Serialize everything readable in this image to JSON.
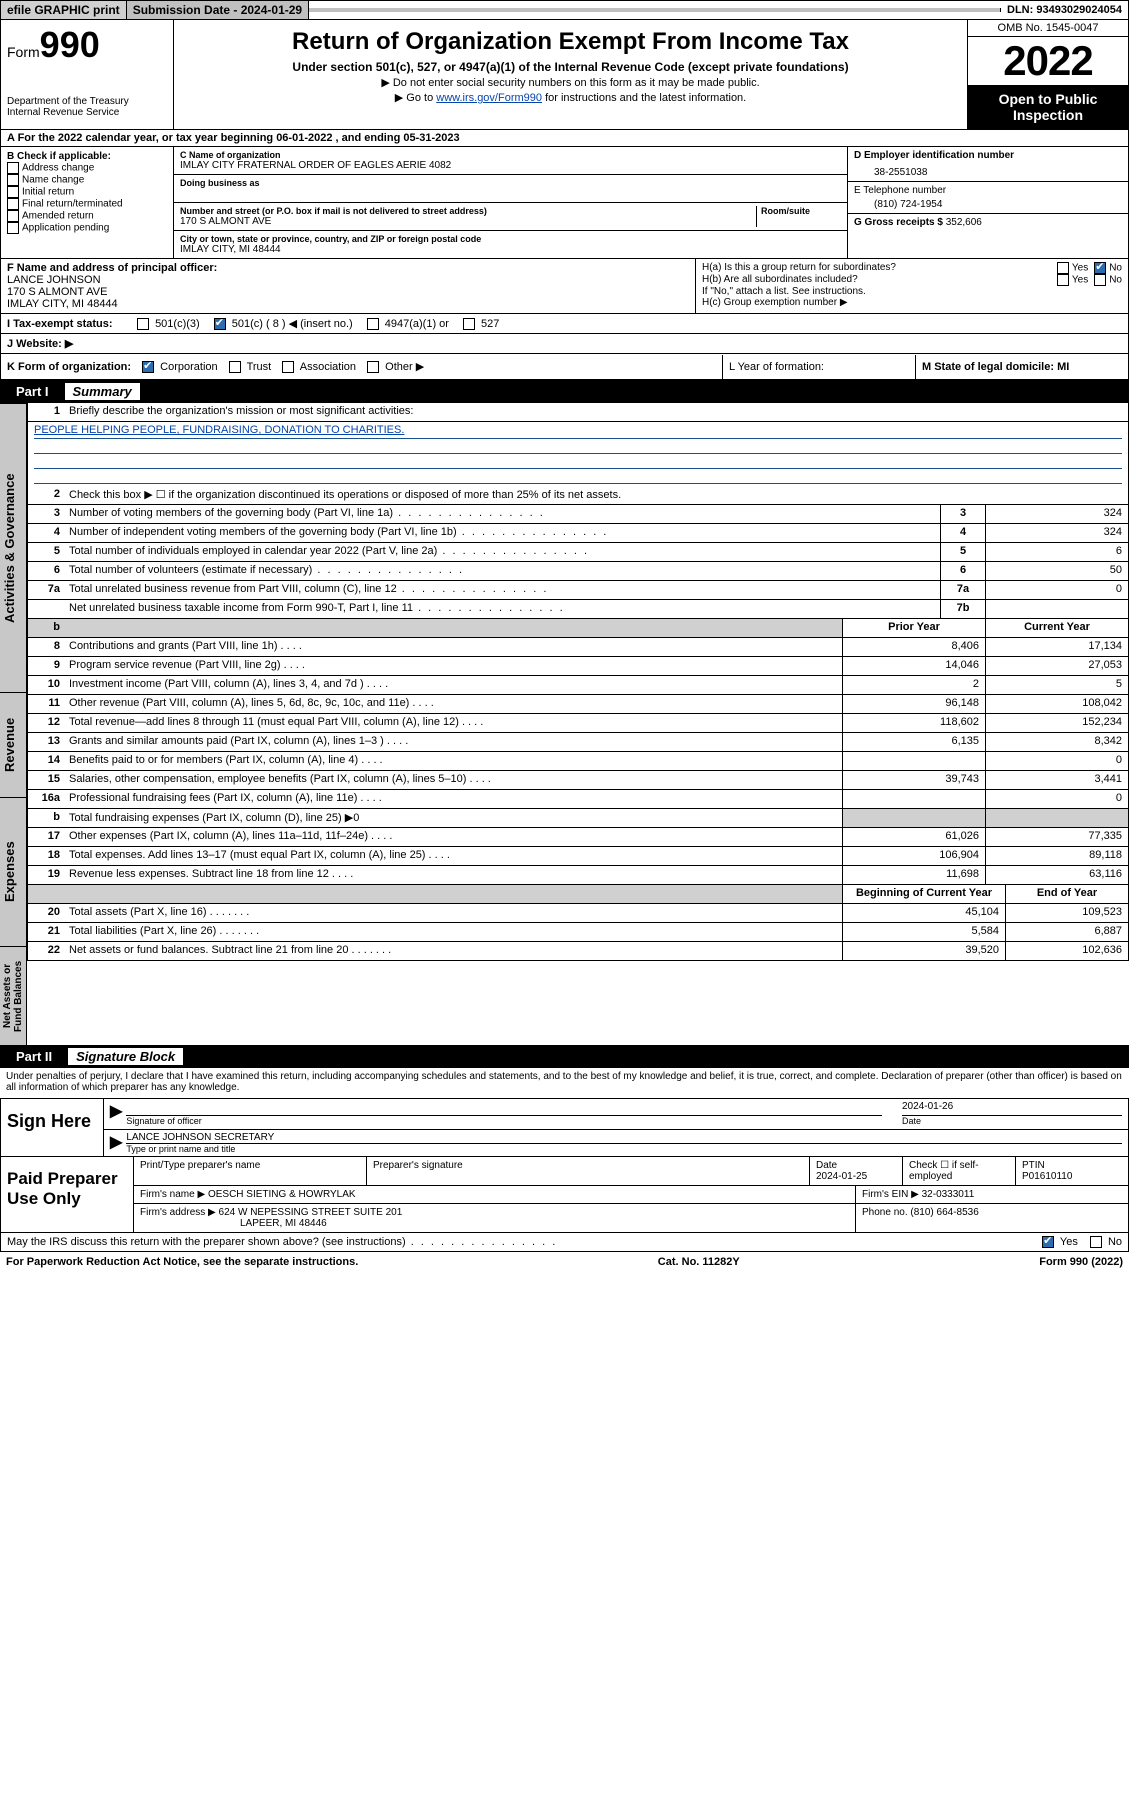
{
  "topbar": {
    "efile": "efile GRAPHIC print",
    "subdate_label": "Submission Date - 2024-01-29",
    "dln": "DLN: 93493029024054"
  },
  "header": {
    "form_prefix": "Form",
    "form_num": "990",
    "dept": "Department of the Treasury",
    "irs": "Internal Revenue Service",
    "title": "Return of Organization Exempt From Income Tax",
    "sub": "Under section 501(c), 527, or 4947(a)(1) of the Internal Revenue Code (except private foundations)",
    "note1": "▶ Do not enter social security numbers on this form as it may be made public.",
    "note2_pre": "▶ Go to ",
    "note2_link": "www.irs.gov/Form990",
    "note2_post": " for instructions and the latest information.",
    "omb": "OMB No. 1545-0047",
    "year": "2022",
    "open": "Open to Public Inspection"
  },
  "period": {
    "line": "A For the 2022 calendar year, or tax year beginning 06-01-2022   , and ending 05-31-2023"
  },
  "blockB": {
    "label": "B Check if applicable:",
    "opts": [
      "Address change",
      "Name change",
      "Initial return",
      "Final return/terminated",
      "Amended return",
      "Application pending"
    ]
  },
  "blockC": {
    "name_label": "C Name of organization",
    "name": "IMLAY CITY FRATERNAL ORDER OF EAGLES AERIE 4082",
    "dba_label": "Doing business as",
    "addr_label": "Number and street (or P.O. box if mail is not delivered to street address)",
    "room": "Room/suite",
    "addr": "170 S ALMONT AVE",
    "city_label": "City or town, state or province, country, and ZIP or foreign postal code",
    "city": "IMLAY CITY, MI  48444"
  },
  "blockD": {
    "label": "D Employer identification number",
    "ein": "38-2551038"
  },
  "blockE": {
    "label": "E Telephone number",
    "phone": "(810) 724-1954"
  },
  "blockG": {
    "label": "G Gross receipts $",
    "val": "352,606"
  },
  "blockF": {
    "label": "F  Name and address of principal officer:",
    "name": "LANCE JOHNSON",
    "addr1": "170 S ALMONT AVE",
    "addr2": "IMLAY CITY, MI  48444"
  },
  "blockH": {
    "ha": "H(a)  Is this a group return for subordinates?",
    "hb": "H(b)  Are all subordinates included?",
    "hnote": "If \"No,\" attach a list. See instructions.",
    "hc": "H(c)  Group exemption number ▶",
    "yes": "Yes",
    "no": "No"
  },
  "lineI": {
    "label": "I     Tax-exempt status:",
    "o1": "501(c)(3)",
    "o2": "501(c) ( 8 ) ◀ (insert no.)",
    "o3": "4947(a)(1) or",
    "o4": "527"
  },
  "lineJ": {
    "label": "J     Website: ▶"
  },
  "lineK": {
    "label": "K Form of organization:",
    "o1": "Corporation",
    "o2": "Trust",
    "o3": "Association",
    "o4": "Other ▶"
  },
  "lineL": {
    "label": "L Year of formation:"
  },
  "lineM": {
    "label": "M State of legal domicile: MI"
  },
  "part1": {
    "num": "Part I",
    "title": "Summary"
  },
  "summary": {
    "q1": "Briefly describe the organization's mission or most significant activities:",
    "mission": "PEOPLE HELPING PEOPLE, FUNDRAISING, DONATION TO CHARITIES.",
    "q2": "Check this box ▶ ☐  if the organization discontinued its operations or disposed of more than 25% of its net assets.",
    "rows_single": [
      {
        "n": "3",
        "d": "Number of voting members of the governing body (Part VI, line 1a)",
        "c": "3",
        "v": "324"
      },
      {
        "n": "4",
        "d": "Number of independent voting members of the governing body (Part VI, line 1b)",
        "c": "4",
        "v": "324"
      },
      {
        "n": "5",
        "d": "Total number of individuals employed in calendar year 2022 (Part V, line 2a)",
        "c": "5",
        "v": "6"
      },
      {
        "n": "6",
        "d": "Total number of volunteers (estimate if necessary)",
        "c": "6",
        "v": "50"
      },
      {
        "n": "7a",
        "d": "Total unrelated business revenue from Part VIII, column (C), line 12",
        "c": "7a",
        "v": "0"
      },
      {
        "n": "",
        "d": "Net unrelated business taxable income from Form 990-T, Part I, line 11",
        "c": "7b",
        "v": ""
      }
    ],
    "head_prior": "Prior Year",
    "head_curr": "Current Year",
    "rows_double": [
      {
        "n": "8",
        "d": "Contributions and grants (Part VIII, line 1h)",
        "p": "8,406",
        "c": "17,134"
      },
      {
        "n": "9",
        "d": "Program service revenue (Part VIII, line 2g)",
        "p": "14,046",
        "c": "27,053"
      },
      {
        "n": "10",
        "d": "Investment income (Part VIII, column (A), lines 3, 4, and 7d )",
        "p": "2",
        "c": "5"
      },
      {
        "n": "11",
        "d": "Other revenue (Part VIII, column (A), lines 5, 6d, 8c, 9c, 10c, and 11e)",
        "p": "96,148",
        "c": "108,042"
      },
      {
        "n": "12",
        "d": "Total revenue—add lines 8 through 11 (must equal Part VIII, column (A), line 12)",
        "p": "118,602",
        "c": "152,234"
      },
      {
        "n": "13",
        "d": "Grants and similar amounts paid (Part IX, column (A), lines 1–3 )",
        "p": "6,135",
        "c": "8,342"
      },
      {
        "n": "14",
        "d": "Benefits paid to or for members (Part IX, column (A), line 4)",
        "p": "",
        "c": "0"
      },
      {
        "n": "15",
        "d": "Salaries, other compensation, employee benefits (Part IX, column (A), lines 5–10)",
        "p": "39,743",
        "c": "3,441"
      },
      {
        "n": "16a",
        "d": "Professional fundraising fees (Part IX, column (A), line 11e)",
        "p": "",
        "c": "0"
      },
      {
        "n": "b",
        "d": "Total fundraising expenses (Part IX, column (D), line 25) ▶0",
        "p": "—shade—",
        "c": "—shade—"
      },
      {
        "n": "17",
        "d": "Other expenses (Part IX, column (A), lines 11a–11d, 11f–24e)",
        "p": "61,026",
        "c": "77,335"
      },
      {
        "n": "18",
        "d": "Total expenses. Add lines 13–17 (must equal Part IX, column (A), line 25)",
        "p": "106,904",
        "c": "89,118"
      },
      {
        "n": "19",
        "d": "Revenue less expenses. Subtract line 18 from line 12",
        "p": "11,698",
        "c": "63,116"
      }
    ],
    "head_begin": "Beginning of Current Year",
    "head_end": "End of Year",
    "rows_net": [
      {
        "n": "20",
        "d": "Total assets (Part X, line 16)",
        "p": "45,104",
        "c": "109,523"
      },
      {
        "n": "21",
        "d": "Total liabilities (Part X, line 26)",
        "p": "5,584",
        "c": "6,887"
      },
      {
        "n": "22",
        "d": "Net assets or fund balances. Subtract line 21 from line 20",
        "p": "39,520",
        "c": "102,636"
      }
    ]
  },
  "vtabs": {
    "gov": "Activities & Governance",
    "rev": "Revenue",
    "exp": "Expenses",
    "net": "Net Assets or Fund Balances"
  },
  "part2": {
    "num": "Part II",
    "title": "Signature Block"
  },
  "penalties": "Under penalties of perjury, I declare that I have examined this return, including accompanying schedules and statements, and to the best of my knowledge and belief, it is true, correct, and complete. Declaration of preparer (other than officer) is based on all information of which preparer has any knowledge.",
  "sign": {
    "left": "Sign Here",
    "sig_label": "Signature of officer",
    "date": "2024-01-26",
    "date_label": "Date",
    "name": "LANCE JOHNSON  SECRETARY",
    "name_label": "Type or print name and title"
  },
  "prep": {
    "left": "Paid Preparer Use Only",
    "h1": "Print/Type preparer's name",
    "h2": "Preparer's signature",
    "h3": "Date",
    "h4": "Check ☐ if self-employed",
    "h5": "PTIN",
    "date": "2024-01-25",
    "ptin": "P01610110",
    "firm_label": "Firm's name   ▶",
    "firm": "OESCH SIETING & HOWRYLAK",
    "ein_label": "Firm's EIN ▶",
    "ein": "32-0333011",
    "addr_label": "Firm's address ▶",
    "addr": "624 W NEPESSING STREET SUITE 201",
    "addr2": "LAPEER, MI  48446",
    "phone_label": "Phone no.",
    "phone": "(810) 664-8536"
  },
  "discuss": {
    "q": "May the IRS discuss this return with the preparer shown above? (see instructions)",
    "yes": "Yes",
    "no": "No"
  },
  "footer": {
    "left": "For Paperwork Reduction Act Notice, see the separate instructions.",
    "mid": "Cat. No. 11282Y",
    "right": "Form 990 (2022)"
  },
  "colors": {
    "link": "#0645ad",
    "shade": "#d0d0d0",
    "checkblue": "#2a6db0"
  }
}
